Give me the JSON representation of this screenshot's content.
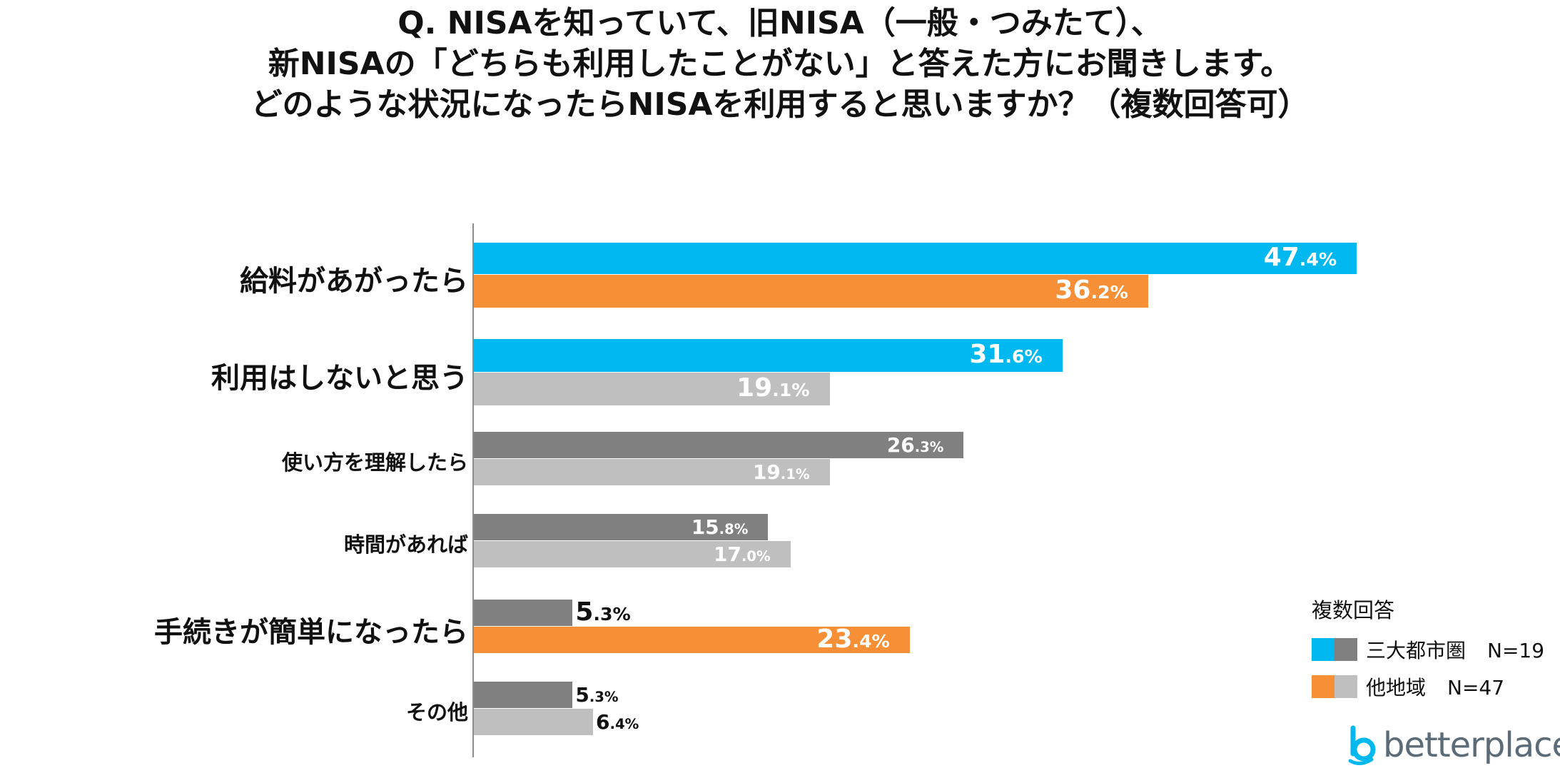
{
  "title_lines": [
    "Q. NISAを知っていて、旧NISA（一般・つみたて）、",
    "新NISAの「どちらも利用したことがない」と答えた方にお聞きします。",
    "どのような状況になったらNISAを利用すると思いますか？（複数回答可）"
  ],
  "colors": {
    "metro_highlight": "#00b8f0",
    "metro": "#808080",
    "other_highlight": "#f78f36",
    "other": "#bfbfbf",
    "axis": "#8c8c8c",
    "logo": "#5b6b78"
  },
  "chart_data": {
    "type": "bar",
    "orientation": "horizontal",
    "unit": "%",
    "categories": [
      "給料があがったら",
      "利用はしないと思う",
      "使い方を理解したら",
      "時間があれば",
      "手続きが簡単になったら",
      "その他"
    ],
    "series": [
      {
        "values": [
          47.4,
          31.6,
          26.3,
          15.8,
          5.3,
          5.3
        ],
        "highlight": [
          true,
          true,
          false,
          false,
          false,
          false
        ]
      },
      {
        "values": [
          36.2,
          19.1,
          19.1,
          17.0,
          23.4,
          6.4
        ],
        "highlight": [
          true,
          false,
          false,
          false,
          true,
          false
        ]
      }
    ],
    "xlim": [
      0,
      50
    ],
    "grid": false,
    "legend": {
      "title": "複数回答",
      "position": "bottom-right",
      "entries": [
        {
          "label": "三大都市圏",
          "n": "N=19"
        },
        {
          "label": "他地域",
          "n": "N=47"
        }
      ]
    }
  },
  "logo": {
    "text": "betterplace",
    "icon": "betterplace-b-icon"
  }
}
